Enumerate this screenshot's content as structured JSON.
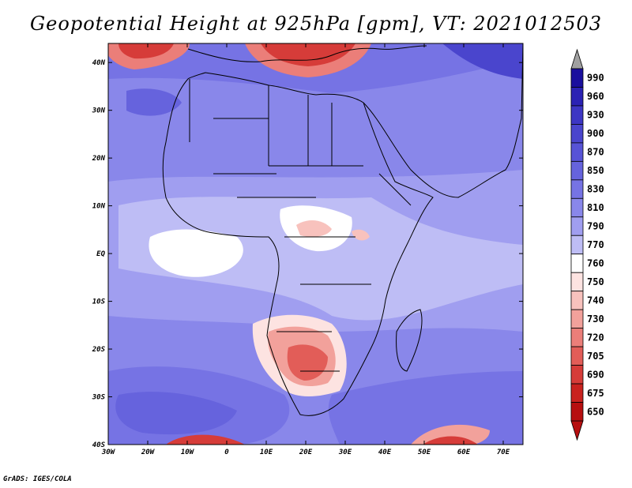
{
  "title": "Geopotential Height at 925hPa [gpm], VT: 2021012503",
  "credit": "GrADS: IGES/COLA",
  "map": {
    "region": "Africa",
    "variable": "Geopotential Height",
    "level": "925hPa",
    "units": "gpm",
    "valid_time": "2021012503",
    "lon_range": [
      -30,
      75
    ],
    "lat_range": [
      -40,
      44
    ],
    "lon_ticks": [
      "30W",
      "20W",
      "10W",
      "0",
      "10E",
      "20E",
      "30E",
      "40E",
      "50E",
      "60E",
      "70E"
    ],
    "lon_tick_values": [
      -30,
      -20,
      -10,
      0,
      10,
      20,
      30,
      40,
      50,
      60,
      70
    ],
    "lat_ticks": [
      "40N",
      "30N",
      "20N",
      "10N",
      "EQ",
      "10S",
      "20S",
      "30S",
      "40S"
    ],
    "lat_tick_values": [
      40,
      30,
      20,
      10,
      0,
      -10,
      -20,
      -30,
      -40
    ]
  },
  "colorbar": {
    "labels": [
      "990",
      "960",
      "930",
      "900",
      "870",
      "850",
      "830",
      "810",
      "790",
      "770",
      "760",
      "750",
      "740",
      "730",
      "720",
      "705",
      "690",
      "675",
      "650"
    ],
    "colors": [
      "#1a0f9e",
      "#2b22b4",
      "#3d36c4",
      "#4a45cd",
      "#5753d6",
      "#6663dd",
      "#7673e4",
      "#8987ea",
      "#a09ef0",
      "#bebdf5",
      "#ffffff",
      "#fde3e1",
      "#f8c2bd",
      "#f2a19b",
      "#eb7e79",
      "#e25d58",
      "#d63c39",
      "#c9221f",
      "#b70f10"
    ],
    "top_arrow_color": "#a0a0a0",
    "bottom_arrow_color": "#b70f10"
  },
  "colors": {
    "sea_dominant": "#8987ea",
    "land_north": "#8987ea",
    "land_tropics": "#bebdf5",
    "low_centers": "#d63c39",
    "coast": "#000000"
  }
}
